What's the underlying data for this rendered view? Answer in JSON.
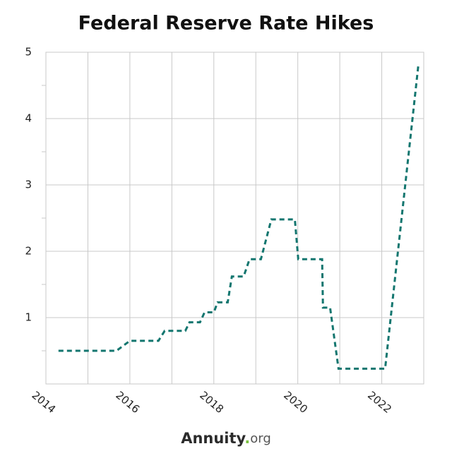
{
  "chart_data": {
    "type": "line",
    "title": "Federal Reserve Rate Hikes",
    "x": [
      2014.3,
      2015.68,
      2016.0,
      2016.68,
      2016.83,
      2017.32,
      2017.42,
      2017.67,
      2017.78,
      2018.0,
      2018.09,
      2018.33,
      2018.43,
      2018.71,
      2018.85,
      2019.12,
      2019.37,
      2019.93,
      2020.01,
      2020.58,
      2020.6,
      2020.77,
      2020.97,
      2022.08,
      2022.87
    ],
    "values": [
      0.5,
      0.5,
      0.65,
      0.65,
      0.8,
      0.8,
      0.93,
      0.93,
      1.08,
      1.08,
      1.23,
      1.23,
      1.62,
      1.62,
      1.88,
      1.88,
      2.48,
      2.48,
      1.88,
      1.88,
      1.15,
      1.15,
      0.23,
      0.23,
      4.8
    ],
    "color": "#13766f",
    "dashed": true,
    "xlim": [
      2014,
      2023
    ],
    "xticks": [
      2014,
      2016,
      2018,
      2020,
      2022
    ],
    "xminor": [
      2015,
      2017,
      2019,
      2021,
      2023
    ],
    "ylim": [
      0,
      5
    ],
    "yticks": [
      1,
      2,
      3,
      4,
      5
    ],
    "yminor": [
      0.5,
      1.5,
      2.5,
      3.5,
      4.5
    ],
    "grid": true
  },
  "footer": {
    "name": "Annuity",
    "dot": ".",
    "domain": "org"
  }
}
